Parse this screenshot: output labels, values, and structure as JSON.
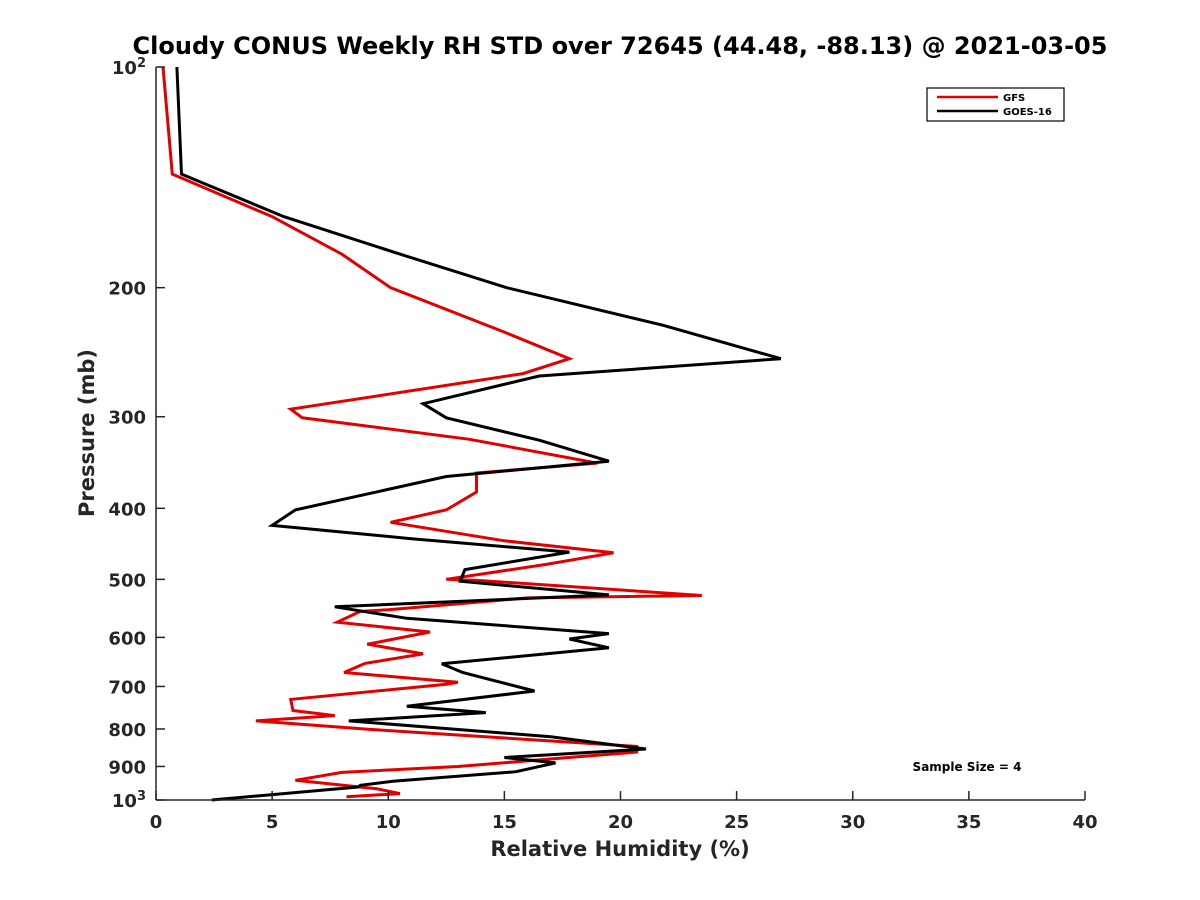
{
  "chart_data": {
    "type": "line",
    "title": "Cloudy CONUS Weekly RH STD over 72645 (44.48, -88.13) @ 2021-03-05",
    "xlabel": "Relative Humidity (%)",
    "ylabel": "Pressure (mb)",
    "xlim": [
      0,
      40
    ],
    "ylim": [
      100,
      1000
    ],
    "y_scale": "log",
    "y_reversed": true,
    "x_ticks": [
      "0",
      "5",
      "10",
      "15",
      "20",
      "25",
      "30",
      "35",
      "40"
    ],
    "y_ticks": [
      {
        "value": 100,
        "base": "10",
        "exp": "2"
      },
      {
        "value": 200,
        "label": "200"
      },
      {
        "value": 300,
        "label": "300"
      },
      {
        "value": 400,
        "label": "400"
      },
      {
        "value": 500,
        "label": "500"
      },
      {
        "value": 600,
        "label": "600"
      },
      {
        "value": 700,
        "label": "700"
      },
      {
        "value": 800,
        "label": "800"
      },
      {
        "value": 900,
        "label": "900"
      },
      {
        "value": 1000,
        "base": "10",
        "exp": "3"
      }
    ],
    "grid": false,
    "legend_position": "top-right",
    "annotation": "Sample Size = 4",
    "series": [
      {
        "name": "GFS",
        "color": "#e00000",
        "points": [
          [
            0.3,
            100
          ],
          [
            0.7,
            140
          ],
          [
            5.0,
            160
          ],
          [
            8.0,
            180
          ],
          [
            10.1,
            200
          ],
          [
            15.0,
            230
          ],
          [
            17.8,
            250
          ],
          [
            15.8,
            262
          ],
          [
            5.8,
            293
          ],
          [
            6.3,
            301
          ],
          [
            13.5,
            322
          ],
          [
            19.0,
            347
          ],
          [
            13.8,
            358
          ],
          [
            13.8,
            380
          ],
          [
            12.5,
            402
          ],
          [
            10.1,
            418
          ],
          [
            15.0,
            443
          ],
          [
            19.7,
            460
          ],
          [
            16.8,
            477
          ],
          [
            12.5,
            500
          ],
          [
            14.0,
            502
          ],
          [
            23.5,
            526
          ],
          [
            16.0,
            530
          ],
          [
            10.0,
            550
          ],
          [
            8.8,
            553
          ],
          [
            7.8,
            572
          ],
          [
            11.8,
            590
          ],
          [
            9.1,
            613
          ],
          [
            11.5,
            632
          ],
          [
            9.0,
            651
          ],
          [
            8.1,
            670
          ],
          [
            13.0,
            691
          ],
          [
            12.5,
            695
          ],
          [
            5.8,
            729
          ],
          [
            5.9,
            755
          ],
          [
            7.7,
            767
          ],
          [
            4.3,
            780
          ],
          [
            9.2,
            801
          ],
          [
            20.7,
            845
          ],
          [
            20.7,
            860
          ],
          [
            13.0,
            900
          ],
          [
            8.0,
            917
          ],
          [
            6.0,
            940
          ],
          [
            9.5,
            965
          ],
          [
            10.5,
            980
          ],
          [
            8.2,
            990
          ]
        ]
      },
      {
        "name": "GOES-16",
        "color": "#000000",
        "points": [
          [
            0.9,
            100
          ],
          [
            1.1,
            140
          ],
          [
            5.5,
            160
          ],
          [
            10.5,
            180
          ],
          [
            15.1,
            200
          ],
          [
            21.8,
            225
          ],
          [
            26.9,
            250
          ],
          [
            16.5,
            264
          ],
          [
            11.5,
            288
          ],
          [
            12.5,
            301
          ],
          [
            16.5,
            323
          ],
          [
            19.5,
            345
          ],
          [
            12.5,
            362
          ],
          [
            6.0,
            402
          ],
          [
            5.0,
            422
          ],
          [
            11.0,
            440
          ],
          [
            17.8,
            459
          ],
          [
            13.3,
            485
          ],
          [
            13.1,
            503
          ],
          [
            19.5,
            525
          ],
          [
            7.7,
            545
          ],
          [
            10.8,
            565
          ],
          [
            19.5,
            593
          ],
          [
            17.8,
            603
          ],
          [
            19.5,
            620
          ],
          [
            12.3,
            652
          ],
          [
            13.2,
            670
          ],
          [
            16.3,
            710
          ],
          [
            10.8,
            745
          ],
          [
            14.2,
            760
          ],
          [
            8.3,
            780
          ],
          [
            17.0,
            820
          ],
          [
            21.1,
            852
          ],
          [
            15.0,
            875
          ],
          [
            17.2,
            890
          ],
          [
            15.5,
            915
          ],
          [
            10.2,
            943
          ],
          [
            8.8,
            955
          ],
          [
            8.7,
            960
          ],
          [
            2.4,
            1000
          ]
        ]
      }
    ]
  }
}
